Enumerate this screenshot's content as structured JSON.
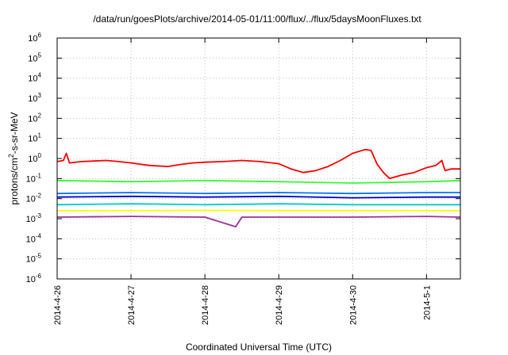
{
  "chart_data": {
    "type": "line",
    "title": "/data/run/goesPlots/archive/2014-05-01/11:00/flux/../flux/5daysMoonFluxes.txt",
    "xlabel": "Coordinated Universal Time (UTC)",
    "ylabel": {
      "prefix": "protons/cm",
      "sup": "2",
      "suffix": "-s-sr-MeV"
    },
    "yscale": "log",
    "ylim": [
      1e-06,
      1000000.0
    ],
    "xlim": [
      "2014-04-26T00:00",
      "2014-05-01T11:00"
    ],
    "grid": true,
    "legend": "none",
    "x_ticks": [
      "2014-4-26",
      "2014-4-27",
      "2014-4-28",
      "2014-4-29",
      "2014-4-30",
      "2014-5-1"
    ],
    "y_ticks": [
      {
        "base": "10",
        "exp": "6"
      },
      {
        "base": "10",
        "exp": "5"
      },
      {
        "base": "10",
        "exp": "4"
      },
      {
        "base": "10",
        "exp": "3"
      },
      {
        "base": "10",
        "exp": "2"
      },
      {
        "base": "10",
        "exp": "1"
      },
      {
        "base": "10",
        "exp": "0"
      },
      {
        "base": "10",
        "exp": "-1"
      },
      {
        "base": "10",
        "exp": "-2"
      },
      {
        "base": "10",
        "exp": "-3"
      },
      {
        "base": "10",
        "exp": "-4"
      },
      {
        "base": "10",
        "exp": "-5"
      },
      {
        "base": "10",
        "exp": "-6"
      }
    ],
    "series": [
      {
        "color": "#ffff00",
        "points": [
          [
            "2014-04-26T00:00",
            0.0025
          ],
          [
            "2014-04-27T00:00",
            0.0025
          ],
          [
            "2014-04-28T00:00",
            0.0026
          ],
          [
            "2014-04-29T00:00",
            0.0025
          ],
          [
            "2014-04-30T00:00",
            0.0025
          ],
          [
            "2014-05-01T00:00",
            0.0025
          ],
          [
            "2014-05-01T11:00",
            0.0025
          ]
        ]
      },
      {
        "color": "#00cccc",
        "points": [
          [
            "2014-04-26T00:00",
            0.005
          ],
          [
            "2014-04-27T00:00",
            0.0055
          ],
          [
            "2014-04-28T00:00",
            0.005
          ],
          [
            "2014-04-29T00:00",
            0.0055
          ],
          [
            "2014-04-30T00:00",
            0.005
          ],
          [
            "2014-05-01T00:00",
            0.005
          ],
          [
            "2014-05-01T11:00",
            0.005
          ]
        ]
      },
      {
        "color": "#33ff33",
        "points": [
          [
            "2014-04-26T00:00",
            0.08
          ],
          [
            "2014-04-27T00:00",
            0.07
          ],
          [
            "2014-04-28T00:00",
            0.08
          ],
          [
            "2014-04-29T00:00",
            0.07
          ],
          [
            "2014-04-30T00:00",
            0.06
          ],
          [
            "2014-05-01T00:00",
            0.07
          ],
          [
            "2014-05-01T11:00",
            0.08
          ]
        ]
      },
      {
        "color": "#0077ff",
        "points": [
          [
            "2014-04-26T00:00",
            0.018
          ],
          [
            "2014-04-27T00:00",
            0.02
          ],
          [
            "2014-04-28T00:00",
            0.018
          ],
          [
            "2014-04-29T00:00",
            0.02
          ],
          [
            "2014-04-30T00:00",
            0.018
          ],
          [
            "2014-05-01T00:00",
            0.02
          ],
          [
            "2014-05-01T11:00",
            0.02
          ]
        ]
      },
      {
        "color": "#0000cc",
        "points": [
          [
            "2014-04-26T00:00",
            0.012
          ],
          [
            "2014-04-27T00:00",
            0.013
          ],
          [
            "2014-04-28T00:00",
            0.012
          ],
          [
            "2014-04-29T00:00",
            0.013
          ],
          [
            "2014-04-30T00:00",
            0.011
          ],
          [
            "2014-05-01T00:00",
            0.012
          ],
          [
            "2014-05-01T11:00",
            0.012
          ]
        ]
      },
      {
        "color": "#993399",
        "points": [
          [
            "2014-04-26T00:00",
            0.0012
          ],
          [
            "2014-04-27T00:00",
            0.0013
          ],
          [
            "2014-04-28T00:00",
            0.0012
          ],
          [
            "2014-04-28T10:00",
            0.0004
          ],
          [
            "2014-04-28T12:00",
            0.0012
          ],
          [
            "2014-04-29T00:00",
            0.0012
          ],
          [
            "2014-04-30T00:00",
            0.0012
          ],
          [
            "2014-05-01T00:00",
            0.0013
          ],
          [
            "2014-05-01T11:00",
            0.0012
          ]
        ]
      },
      {
        "color": "#ff0000",
        "points": [
          [
            "2014-04-26T00:00",
            0.7
          ],
          [
            "2014-04-26T02:00",
            0.8
          ],
          [
            "2014-04-26T03:00",
            1.8
          ],
          [
            "2014-04-26T04:00",
            0.6
          ],
          [
            "2014-04-26T08:00",
            0.7
          ],
          [
            "2014-04-26T12:00",
            0.75
          ],
          [
            "2014-04-26T16:00",
            0.8
          ],
          [
            "2014-04-26T20:00",
            0.7
          ],
          [
            "2014-04-27T00:00",
            0.6
          ],
          [
            "2014-04-27T06:00",
            0.45
          ],
          [
            "2014-04-27T12:00",
            0.4
          ],
          [
            "2014-04-27T16:00",
            0.5
          ],
          [
            "2014-04-27T20:00",
            0.6
          ],
          [
            "2014-04-28T00:00",
            0.65
          ],
          [
            "2014-04-28T06:00",
            0.7
          ],
          [
            "2014-04-28T12:00",
            0.8
          ],
          [
            "2014-04-28T18:00",
            0.7
          ],
          [
            "2014-04-29T00:00",
            0.55
          ],
          [
            "2014-04-29T04:00",
            0.3
          ],
          [
            "2014-04-29T08:00",
            0.2
          ],
          [
            "2014-04-29T12:00",
            0.25
          ],
          [
            "2014-04-29T16:00",
            0.4
          ],
          [
            "2014-04-29T20:00",
            0.8
          ],
          [
            "2014-04-30T00:00",
            1.8
          ],
          [
            "2014-04-30T04:00",
            2.8
          ],
          [
            "2014-04-30T06:00",
            2.5
          ],
          [
            "2014-04-30T08:00",
            0.5
          ],
          [
            "2014-04-30T10:00",
            0.2
          ],
          [
            "2014-04-30T12:00",
            0.1
          ],
          [
            "2014-04-30T16:00",
            0.15
          ],
          [
            "2014-04-30T20:00",
            0.2
          ],
          [
            "2014-05-01T00:00",
            0.35
          ],
          [
            "2014-05-01T03:00",
            0.45
          ],
          [
            "2014-05-01T05:00",
            0.8
          ],
          [
            "2014-05-01T06:00",
            0.25
          ],
          [
            "2014-05-01T08:00",
            0.3
          ],
          [
            "2014-05-01T11:00",
            0.3
          ]
        ]
      }
    ]
  }
}
